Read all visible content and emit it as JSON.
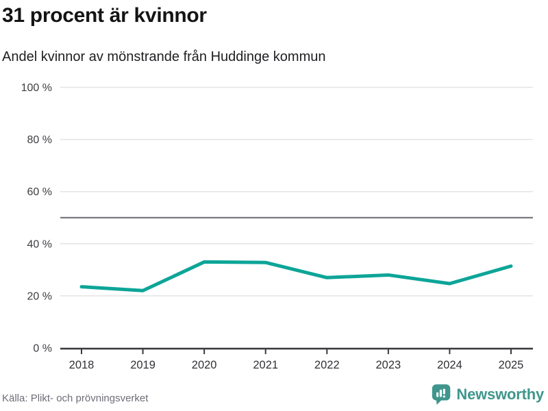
{
  "header": {
    "title": "31 procent är kvinnor",
    "subtitle": "Andel kvinnor av mönstrande från Huddinge kommun"
  },
  "chart_data": {
    "type": "line",
    "title": "31 procent är kvinnor",
    "subtitle": "Andel kvinnor av mönstrande från Huddinge kommun",
    "categories": [
      "2018",
      "2019",
      "2020",
      "2021",
      "2022",
      "2023",
      "2024",
      "2025"
    ],
    "series": [
      {
        "name": "Andel kvinnor av mönstrande",
        "values": [
          23.5,
          22,
          33,
          32.8,
          27,
          28,
          24.7,
          31.4
        ]
      }
    ],
    "ylim": [
      0,
      100
    ],
    "yticks": [
      0,
      20,
      40,
      60,
      80,
      100
    ],
    "ytick_labels": [
      "0 %",
      "20 %",
      "40 %",
      "60 %",
      "80 %",
      "100 %"
    ],
    "reference_line": {
      "value": 50
    },
    "grid": true,
    "legend": "none",
    "xlabel": "",
    "ylabel": ""
  },
  "colors": {
    "line": "#0da598",
    "reference_line": "#69696e",
    "gridline": "#e3e3e3",
    "axis": "#39393d",
    "tick_label": "#3d3d42",
    "brand_teal": "#3f968c"
  },
  "footer": {
    "source": "Källa: Plikt- och prövningsverket",
    "brand": "Newsworthy"
  }
}
